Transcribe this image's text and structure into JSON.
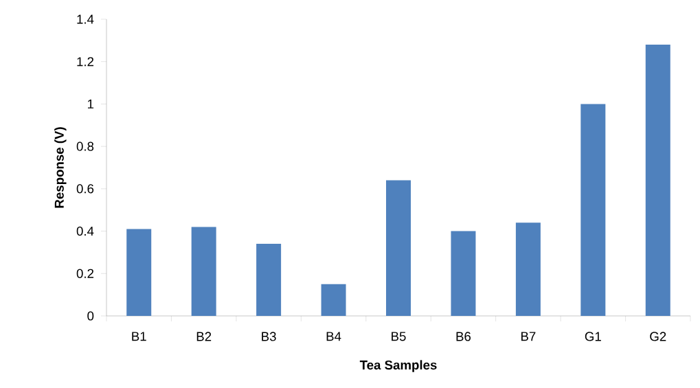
{
  "chart_data": {
    "type": "bar",
    "xlabel": "Tea Samples",
    "ylabel": "Response (V)",
    "categories": [
      "B1",
      "B2",
      "B3",
      "B4",
      "B5",
      "B6",
      "B7",
      "G1",
      "G2"
    ],
    "values": [
      0.41,
      0.42,
      0.34,
      0.15,
      0.64,
      0.4,
      0.44,
      1.0,
      1.28
    ],
    "color": "#4f81bd",
    "ylim": [
      0,
      1.4
    ],
    "yticks": [
      0,
      0.2,
      0.4,
      0.6,
      0.8,
      {
        "value": 1,
        "label": "1"
      },
      1.2,
      1.4
    ],
    "grid": false
  }
}
